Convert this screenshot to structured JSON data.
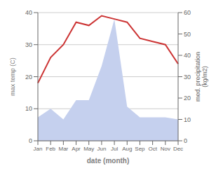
{
  "chart_data": {
    "type": "line",
    "xlabel": "date (month)",
    "ylabel": "max temp (C)",
    "y2label": "med. precipitation\n(kg/m2)",
    "categories": [
      "Jan",
      "Feb",
      "Mar",
      "Apr",
      "May",
      "Jun",
      "Jul",
      "Aug",
      "Sep",
      "Oct",
      "Nov",
      "Dec"
    ],
    "series": [
      {
        "type": "area",
        "axis": "y2",
        "color": "#c5d0ee",
        "values": [
          11,
          15,
          10,
          19,
          19,
          35,
          57,
          16,
          11,
          11,
          11,
          10
        ]
      },
      {
        "type": "line",
        "color": "#cc3333",
        "values": [
          18,
          26,
          30,
          37,
          36,
          39,
          38,
          37,
          32,
          31,
          30,
          24
        ]
      }
    ],
    "ylim": [
      0,
      40
    ],
    "yticks": [
      0,
      10,
      20,
      30,
      40
    ],
    "y2lim": [
      0,
      60
    ],
    "y2ticks": [
      0,
      10,
      20,
      30,
      40,
      50,
      60
    ],
    "grid": true
  }
}
